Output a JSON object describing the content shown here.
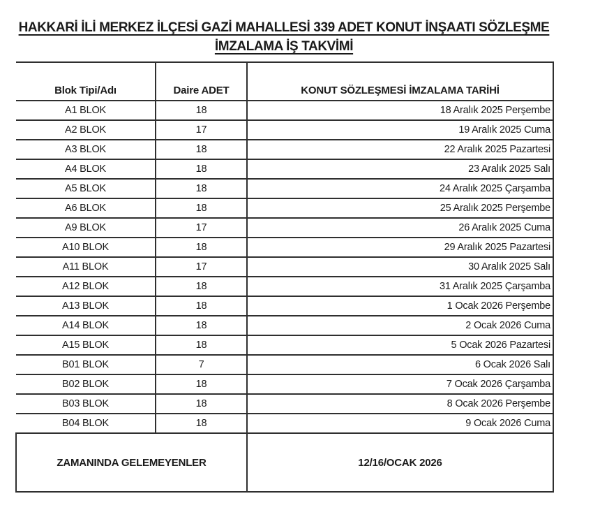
{
  "title": {
    "line1": "HAKKARİ İLİ MERKEZ İLÇESİ GAZİ MAHALLESİ 339 ADET KONUT İNŞAATI SÖZLEŞME",
    "line2": "İMZALAMA İŞ TAKVİMİ"
  },
  "table": {
    "headers": {
      "block": "Blok Tipi/Adı",
      "units": "Daire ADET",
      "date": "KONUT SÖZLEŞMESİ İMZALAMA TARİHİ"
    },
    "rows": [
      {
        "blok": "A1 BLOK",
        "daire": "18",
        "tarih": "18 Aralık 2025 Perşembe"
      },
      {
        "blok": "A2 BLOK",
        "daire": "17",
        "tarih": "19 Aralık 2025 Cuma"
      },
      {
        "blok": "A3 BLOK",
        "daire": "18",
        "tarih": "22 Aralık 2025 Pazartesi"
      },
      {
        "blok": "A4 BLOK",
        "daire": "18",
        "tarih": "23 Aralık 2025 Salı"
      },
      {
        "blok": "A5 BLOK",
        "daire": "18",
        "tarih": "24 Aralık 2025 Çarşamba"
      },
      {
        "blok": "A6 BLOK",
        "daire": "18",
        "tarih": "25 Aralık 2025 Perşembe"
      },
      {
        "blok": "A9 BLOK",
        "daire": "17",
        "tarih": "26 Aralık 2025 Cuma"
      },
      {
        "blok": "A10 BLOK",
        "daire": "18",
        "tarih": "29 Aralık 2025 Pazartesi"
      },
      {
        "blok": "A11 BLOK",
        "daire": "17",
        "tarih": "30 Aralık 2025 Salı"
      },
      {
        "blok": "A12 BLOK",
        "daire": "18",
        "tarih": "31 Aralık 2025 Çarşamba"
      },
      {
        "blok": "A13 BLOK",
        "daire": "18",
        "tarih": "1 Ocak 2026 Perşembe"
      },
      {
        "blok": "A14 BLOK",
        "daire": "18",
        "tarih": "2 Ocak 2026 Cuma"
      },
      {
        "blok": "A15 BLOK",
        "daire": "18",
        "tarih": "5 Ocak 2026 Pazartesi"
      },
      {
        "blok": "B01 BLOK",
        "daire": "7",
        "tarih": "6 Ocak 2026 Salı"
      },
      {
        "blok": "B02 BLOK",
        "daire": "18",
        "tarih": "7 Ocak 2026 Çarşamba"
      },
      {
        "blok": "B03 BLOK",
        "daire": "18",
        "tarih": "8 Ocak 2026 Perşembe"
      },
      {
        "blok": "B04 BLOK",
        "daire": "18",
        "tarih": "9 Ocak 2026 Cuma"
      }
    ],
    "footer": {
      "label": "ZAMANINDA GELEMEYENLER",
      "value": "12/16/OCAK 2026"
    }
  },
  "colors": {
    "text": "#1b1b1b",
    "border": "#2f2f2f",
    "background": "#ffffff"
  }
}
